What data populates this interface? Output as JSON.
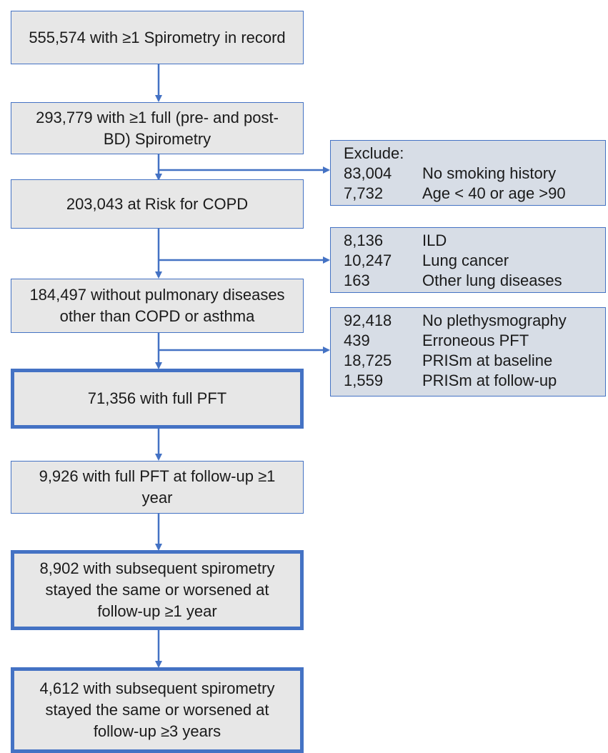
{
  "nodes": [
    {
      "label": "555,574 with ≥1 Spirometry in record"
    },
    {
      "label": "293,779 with ≥1 full (pre- and post-BD) Spirometry"
    },
    {
      "label": "203,043 at Risk for COPD"
    },
    {
      "label": "184,497 without pulmonary diseases other than COPD or asthma"
    },
    {
      "label": "71,356 with full PFT"
    },
    {
      "label": "9,926 with full PFT at follow-up ≥1 year"
    },
    {
      "label": "8,902 with subsequent spirometry stayed the same or worsened at follow-up ≥1 year"
    },
    {
      "label": "4,612 with subsequent spirometry stayed the same or worsened at follow-up ≥3 years"
    }
  ],
  "exclusions": [
    {
      "title": "Exclude:",
      "items": [
        {
          "count": "83,004",
          "reason": "No smoking history"
        },
        {
          "count": "7,732",
          "reason": "Age < 40 or age >90"
        }
      ]
    },
    {
      "items": [
        {
          "count": "8,136",
          "reason": "ILD"
        },
        {
          "count": "10,247",
          "reason": "Lung cancer"
        },
        {
          "count": "163",
          "reason": "Other lung diseases"
        }
      ]
    },
    {
      "items": [
        {
          "count": "92,418",
          "reason": "No plethysmography"
        },
        {
          "count": "439",
          "reason": "Erroneous PFT"
        },
        {
          "count": "18,725",
          "reason": "PRISm at baseline"
        },
        {
          "count": "1,559",
          "reason": "PRISm at follow-up"
        }
      ]
    }
  ]
}
